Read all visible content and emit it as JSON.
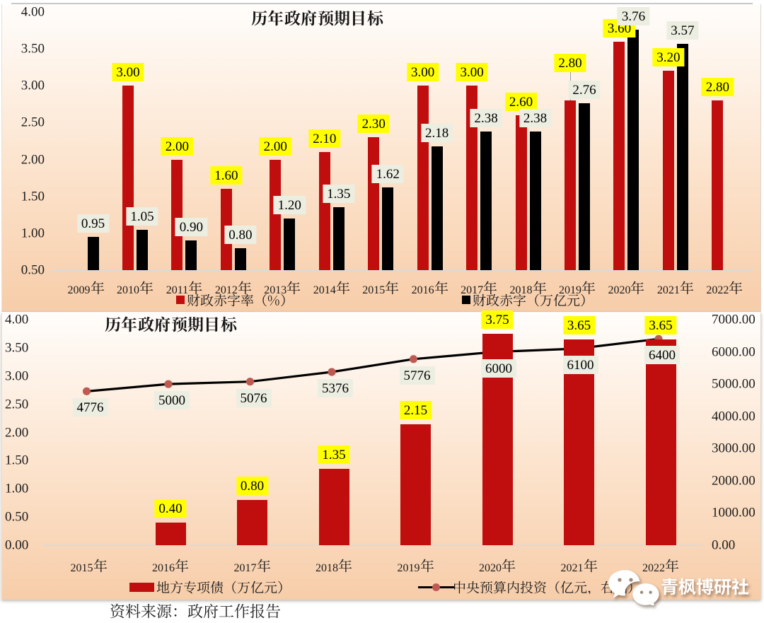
{
  "page": {
    "background": "#ffffff",
    "source_note": "资料来源：政府工作报告",
    "watermark": {
      "icon": "wechat-icon",
      "name": "青枫博研社"
    }
  },
  "chart_data": [
    {
      "type": "bar",
      "title": "历年政府预期目标",
      "categories": [
        "2009年",
        "2010年",
        "2011年",
        "2012年",
        "2013年",
        "2014年",
        "2015年",
        "2016年",
        "2017年",
        "2018年",
        "2019年",
        "2020年",
        "2021年",
        "2022年"
      ],
      "series": [
        {
          "name": "财政赤字率（%）",
          "color": "#C00D0D",
          "label_fill": "#FFFF00",
          "values": [
            null,
            3.0,
            2.0,
            1.6,
            2.0,
            2.1,
            2.3,
            3.0,
            3.0,
            2.6,
            2.8,
            3.6,
            3.2,
            2.8
          ],
          "labels": [
            "",
            "3.00",
            "2.00",
            "1.60",
            "2.00",
            "2.10",
            "2.30",
            "3.00",
            "3.00",
            "2.60",
            "2.80",
            "3.60",
            "3.20",
            "2.80"
          ]
        },
        {
          "name": "财政赤字（万亿元）",
          "color": "#000000",
          "label_fill": "#ECEEE2",
          "values": [
            0.95,
            1.05,
            0.9,
            0.8,
            1.2,
            1.35,
            1.62,
            2.18,
            2.38,
            2.38,
            2.76,
            3.76,
            3.57,
            null
          ],
          "labels": [
            "0.95",
            "1.05",
            "0.90",
            "0.80",
            "1.20",
            "1.35",
            "1.62",
            "2.18",
            "2.38",
            "2.38",
            "2.76",
            "3.76",
            "3.57",
            ""
          ]
        }
      ],
      "y_axis": {
        "min": 0.5,
        "max": 4.0,
        "ticks": [
          "4.00",
          "3.50",
          "3.00",
          "2.50",
          "2.00",
          "1.50",
          "1.00",
          "0.50"
        ]
      },
      "legend_position": "bottom",
      "grid": false
    },
    {
      "type": "bar+line",
      "title": "历年政府预期目标",
      "categories": [
        "2015年",
        "2016年",
        "2017年",
        "2018年",
        "2019年",
        "2020年",
        "2021年",
        "2022年"
      ],
      "series": [
        {
          "type": "bar",
          "name": "地方专项债（万亿元）",
          "axis": "left",
          "color": "#C00D0D",
          "label_fill": "#FFFF00",
          "values": [
            null,
            0.4,
            0.8,
            1.35,
            2.15,
            3.75,
            3.65,
            3.65
          ],
          "labels": [
            "",
            "0.40",
            "0.80",
            "1.35",
            "2.15",
            "3.75",
            "3.65",
            "3.65"
          ]
        },
        {
          "type": "line",
          "name": "中央预算内投资（亿元，右轴）",
          "axis": "right",
          "color": "#000000",
          "marker_color": "#BE5A52",
          "label_fill": "#ECEEE2",
          "values": [
            4776,
            5000,
            5076,
            5376,
            5776,
            6000,
            6100,
            6400
          ],
          "labels": [
            "4776",
            "5000",
            "5076",
            "5376",
            "5776",
            "6000",
            "6100",
            "6400"
          ]
        }
      ],
      "y_axis_left": {
        "min": 0,
        "max": 4,
        "ticks": [
          "4.00",
          "3.50",
          "3.00",
          "2.50",
          "2.00",
          "1.50",
          "1.00",
          "0.50",
          "0.00"
        ]
      },
      "y_axis_right": {
        "min": 0,
        "max": 7000,
        "ticks": [
          "7000.00",
          "6000.00",
          "5000.00",
          "4000.00",
          "3000.00",
          "2000.00",
          "1000.00",
          "0.00"
        ]
      },
      "legend_position": "bottom",
      "grid": false
    }
  ]
}
